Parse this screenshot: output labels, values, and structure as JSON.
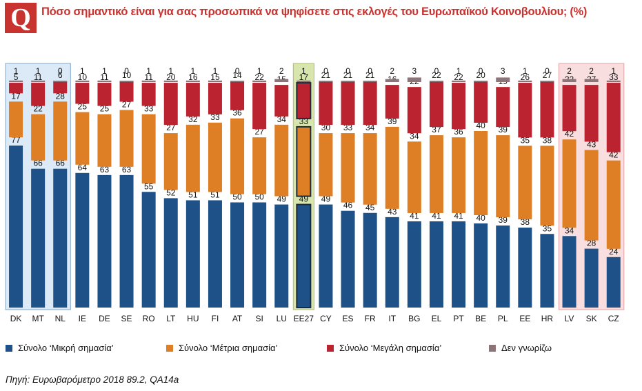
{
  "header": {
    "logo_letter": "Q",
    "title": "Πόσο σημαντικό είναι για σας προσωπικά να ψηφίσετε στις εκλογές του Ευρωπαϊκού Κοινοβουλίου; (%)"
  },
  "source": "Πηγή: Ευρωβαρόμετρο 2018 89.2, QA14a",
  "colors": {
    "small": "#1d5188",
    "medium": "#de7f26",
    "large": "#bb2330",
    "dk": "#8c7479",
    "highlight_blue": "#dbeaf6",
    "highlight_green": "#d8e6ae",
    "highlight_pink": "#f8dedf"
  },
  "chart_data": {
    "type": "bar",
    "stacked": true,
    "title": "Πόσο σημαντικό είναι για σας προσωπικά να ψηφίσετε στις εκλογές του Ευρωπαϊκού Κοινοβουλίου; (%)",
    "categories": [
      "DK",
      "MT",
      "NL",
      "IE",
      "DE",
      "SE",
      "RO",
      "LT",
      "HU",
      "FI",
      "AT",
      "SI",
      "LU",
      "EE27",
      "CY",
      "ES",
      "FR",
      "IT",
      "BG",
      "EL",
      "PT",
      "BE",
      "PL",
      "EE",
      "HR",
      "LV",
      "SK",
      "CZ"
    ],
    "series": [
      {
        "name": "Σύνολο ‘Μικρή σημασία’",
        "values": [
          77,
          66,
          66,
          64,
          63,
          63,
          55,
          52,
          51,
          51,
          50,
          50,
          49,
          49,
          49,
          46,
          45,
          43,
          41,
          41,
          41,
          40,
          39,
          38,
          35,
          34,
          28,
          24
        ]
      },
      {
        "name": "Σύνολο ‘Μέτρια σημασία’",
        "values": [
          17,
          22,
          28,
          25,
          25,
          27,
          33,
          27,
          32,
          33,
          36,
          27,
          34,
          33,
          30,
          33,
          34,
          39,
          34,
          37,
          36,
          40,
          39,
          35,
          38,
          42,
          43,
          42
        ]
      },
      {
        "name": "Σύνολο ‘Μεγάλη σημασία’",
        "values": [
          5,
          11,
          6,
          10,
          11,
          10,
          11,
          20,
          16,
          15,
          14,
          22,
          15,
          17,
          21,
          21,
          21,
          16,
          22,
          22,
          22,
          20,
          19,
          26,
          27,
          22,
          27,
          33
        ]
      },
      {
        "name": "Δεν γνωρίζω",
        "values": [
          1,
          1,
          0,
          1,
          1,
          0,
          1,
          1,
          1,
          1,
          0,
          1,
          2,
          1,
          0,
          0,
          0,
          2,
          3,
          0,
          1,
          0,
          3,
          1,
          0,
          2,
          2,
          1
        ]
      }
    ],
    "legend_position": "bottom",
    "ylim": [
      0,
      100
    ]
  }
}
